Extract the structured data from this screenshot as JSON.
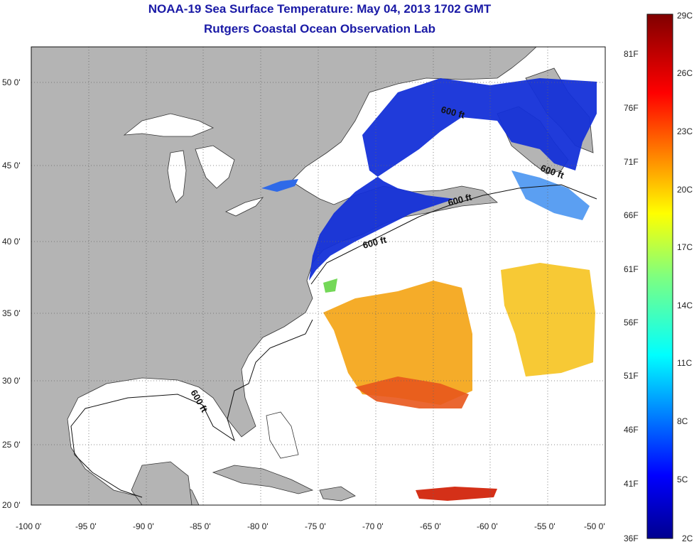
{
  "title": "NOAA-19 Sea Surface Temperature:  May 04, 2013 1702 GMT",
  "subtitle": "Rutgers Coastal Ocean Observation Lab",
  "axes": {
    "lat_labels": [
      "50 0'",
      "45 0'",
      "40 0'",
      "35 0'",
      "30 0'",
      "25 0'",
      "20 0'"
    ],
    "lon_labels": [
      "-100 0'",
      "-95 0'",
      "-90 0'",
      "-85 0'",
      "-80 0'",
      "-75 0'",
      "-70 0'",
      "-65 0'",
      "-60 0'",
      "-55 0'",
      "-50 0'"
    ]
  },
  "contour_labels": [
    "600 ft",
    "600 ft",
    "600 ft",
    "600 ft",
    "600 ft"
  ],
  "colorbar": {
    "celsius_labels": [
      "29C",
      "26C",
      "23C",
      "20C",
      "17C",
      "14C",
      "11C",
      "8C",
      "5C",
      "2C"
    ],
    "fahrenheit_labels": [
      "81F",
      "76F",
      "71F",
      "66F",
      "61F",
      "56F",
      "51F",
      "46F",
      "41F",
      "36F"
    ]
  },
  "colors": {
    "land": "#b4b4b4",
    "water": "#ffffff",
    "title": "#1a1aa6"
  }
}
